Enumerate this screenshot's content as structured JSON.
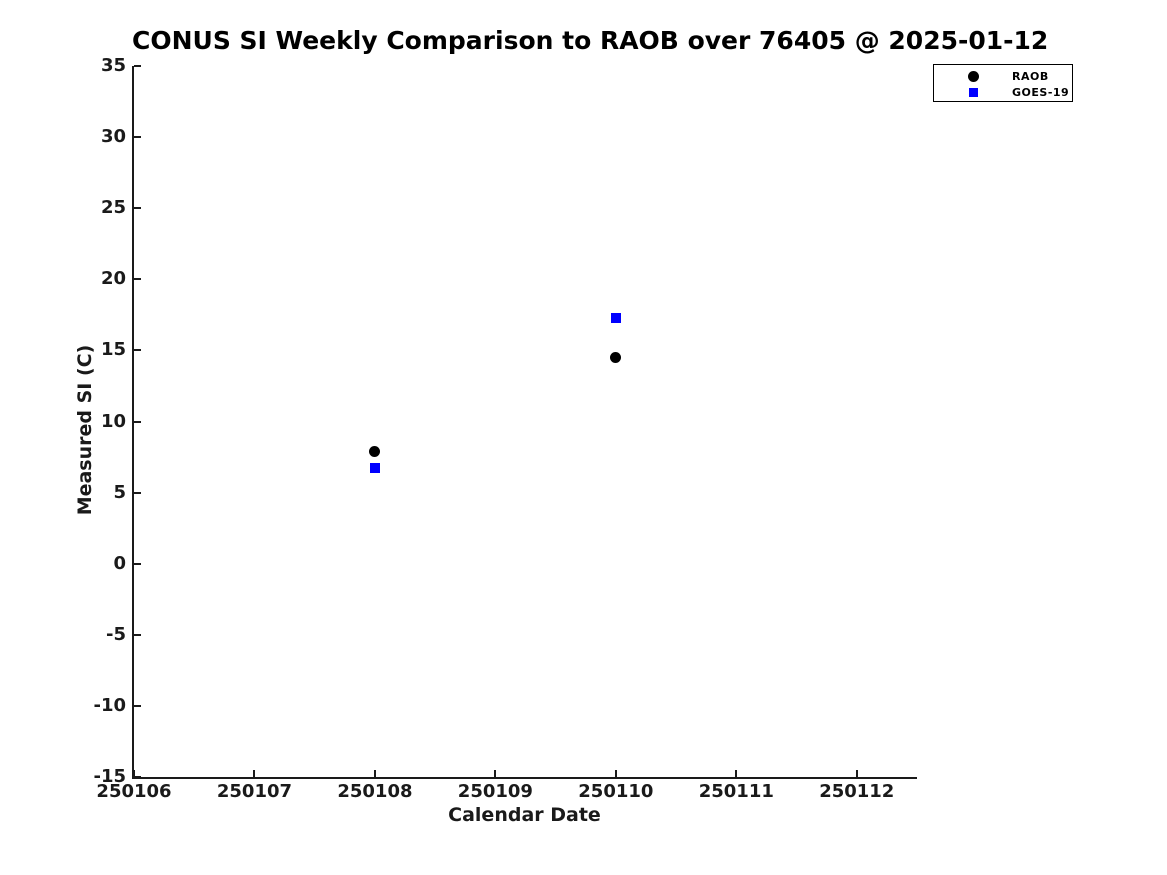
{
  "chart_data": {
    "type": "scatter",
    "title": "CONUS SI Weekly Comparison to RAOB over 76405 @ 2025-01-12",
    "xlabel": "Calendar Date",
    "ylabel": "Measured SI (C)",
    "xlim": [
      250106,
      250112.5
    ],
    "ylim": [
      -15,
      35
    ],
    "x_ticks": [
      250106,
      250107,
      250108,
      250109,
      250110,
      250111,
      250112
    ],
    "y_ticks": [
      35,
      30,
      25,
      20,
      15,
      10,
      5,
      0,
      -5,
      -10,
      -15
    ],
    "grid": false,
    "legend_position": "top-right",
    "series": [
      {
        "name": "RAOB",
        "marker": "circle",
        "color": "#000000",
        "points": [
          {
            "x": 250108,
            "y": 7.9
          },
          {
            "x": 250110,
            "y": 14.5
          }
        ]
      },
      {
        "name": "GOES-19",
        "marker": "square",
        "color": "#0000ff",
        "points": [
          {
            "x": 250108,
            "y": 6.7
          },
          {
            "x": 250110,
            "y": 17.3
          }
        ]
      }
    ]
  },
  "colors": {
    "axis": "#1a1a1a",
    "title": "#000000",
    "background": "#ffffff",
    "raob": "#000000",
    "goes19": "#0000ff"
  }
}
